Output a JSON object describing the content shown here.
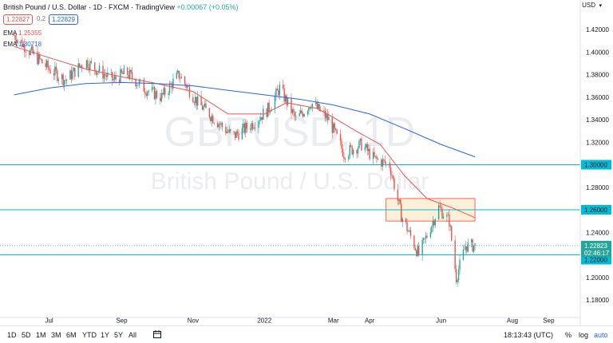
{
  "header": {
    "title": "British Pound / U.S. Dollar · 1D · FXCM · TradingView",
    "change": "+0.00067 (+0.05%)",
    "bid": "1.22827",
    "spread": "0.2",
    "ask": "1.22829"
  },
  "indicators": [
    {
      "name": "EMA",
      "value": "1.25355",
      "color": "#ef5350"
    },
    {
      "name": "EMA",
      "value": "1.30718",
      "color": "#2962ff"
    }
  ],
  "currency_label": "USD",
  "watermark": {
    "symbol": "GBPUSD, 1D",
    "name": "British Pound / U.S. Dollar"
  },
  "price_axis": {
    "ticks": [
      "1.42000",
      "1.40000",
      "1.38000",
      "1.36000",
      "1.34000",
      "1.32000",
      "1.30000",
      "1.28000",
      "1.26000",
      "1.24000",
      "1.22000",
      "1.20000",
      "1.18000"
    ],
    "labels": {
      "level_1_30": "1.30000",
      "level_1_26": "1.26000",
      "last_price": "1.22823",
      "countdown": "02:46:17",
      "level_1_22": "1.22000"
    }
  },
  "time_axis": [
    "Jul",
    "Sep",
    "Nov",
    "2022",
    "Mar",
    "Apr",
    "Jun",
    "Aug",
    "Sep"
  ],
  "toolbar": {
    "timeframes": [
      "1D",
      "5D",
      "1M",
      "3M",
      "6M",
      "YTD",
      "1Y",
      "5Y",
      "All"
    ],
    "clock": "18:13:43 (UTC)",
    "percent": "%",
    "log": "log",
    "auto": "auto"
  },
  "colors": {
    "up": "#26a69a",
    "down": "#ef5350",
    "ema_fast": "#ef5350",
    "ema_slow": "#2962ff",
    "hline": "#00bcd4",
    "zone_fill": "#fde9c8",
    "zone_border": "#f44336"
  },
  "chart_data": {
    "type": "candlestick",
    "price_range": [
      1.17,
      1.435
    ],
    "horizontal_levels": [
      1.3,
      1.26,
      1.22
    ],
    "highlight_zone": {
      "from_date": "2022-04-15",
      "to_date": "2022-06-30",
      "low": 1.25,
      "high": 1.27
    },
    "last_price": 1.22823,
    "ema_fast_points": [
      [
        "2021-06-01",
        1.405
      ],
      [
        "2021-07-01",
        1.395
      ],
      [
        "2021-08-01",
        1.385
      ],
      [
        "2021-09-01",
        1.378
      ],
      [
        "2021-10-01",
        1.372
      ],
      [
        "2021-11-01",
        1.365
      ],
      [
        "2021-12-01",
        1.345
      ],
      [
        "2022-01-01",
        1.345
      ],
      [
        "2022-01-20",
        1.355
      ],
      [
        "2022-02-15",
        1.35
      ],
      [
        "2022-03-01",
        1.342
      ],
      [
        "2022-03-20",
        1.33
      ],
      [
        "2022-04-10",
        1.318
      ],
      [
        "2022-05-01",
        1.29
      ],
      [
        "2022-05-20",
        1.27
      ],
      [
        "2022-06-10",
        1.262
      ],
      [
        "2022-06-30",
        1.253
      ]
    ],
    "ema_slow_points": [
      [
        "2021-06-01",
        1.362
      ],
      [
        "2021-07-01",
        1.368
      ],
      [
        "2021-08-01",
        1.372
      ],
      [
        "2021-09-01",
        1.373
      ],
      [
        "2021-10-01",
        1.372
      ],
      [
        "2021-11-01",
        1.37
      ],
      [
        "2021-12-01",
        1.366
      ],
      [
        "2022-01-01",
        1.362
      ],
      [
        "2022-02-01",
        1.358
      ],
      [
        "2022-03-01",
        1.353
      ],
      [
        "2022-04-01",
        1.345
      ],
      [
        "2022-05-01",
        1.332
      ],
      [
        "2022-06-01",
        1.318
      ],
      [
        "2022-06-30",
        1.307
      ]
    ],
    "close_anchors": [
      [
        "2021-06-01",
        1.415
      ],
      [
        "2021-06-15",
        1.4
      ],
      [
        "2021-07-01",
        1.385
      ],
      [
        "2021-07-15",
        1.375
      ],
      [
        "2021-08-01",
        1.392
      ],
      [
        "2021-08-10",
        1.385
      ],
      [
        "2021-08-25",
        1.375
      ],
      [
        "2021-09-05",
        1.382
      ],
      [
        "2021-09-20",
        1.368
      ],
      [
        "2021-10-05",
        1.36
      ],
      [
        "2021-10-20",
        1.38
      ],
      [
        "2021-11-05",
        1.355
      ],
      [
        "2021-11-20",
        1.34
      ],
      [
        "2021-12-05",
        1.325
      ],
      [
        "2021-12-20",
        1.335
      ],
      [
        "2022-01-05",
        1.35
      ],
      [
        "2022-01-14",
        1.368
      ],
      [
        "2022-01-28",
        1.34
      ],
      [
        "2022-02-10",
        1.355
      ],
      [
        "2022-02-25",
        1.34
      ],
      [
        "2022-03-10",
        1.31
      ],
      [
        "2022-03-25",
        1.318
      ],
      [
        "2022-04-05",
        1.305
      ],
      [
        "2022-04-18",
        1.3
      ],
      [
        "2022-04-28",
        1.255
      ],
      [
        "2022-05-13",
        1.22
      ],
      [
        "2022-05-30",
        1.262
      ],
      [
        "2022-06-08",
        1.25
      ],
      [
        "2022-06-14",
        1.2
      ],
      [
        "2022-06-22",
        1.228
      ],
      [
        "2022-06-30",
        1.228
      ]
    ]
  }
}
